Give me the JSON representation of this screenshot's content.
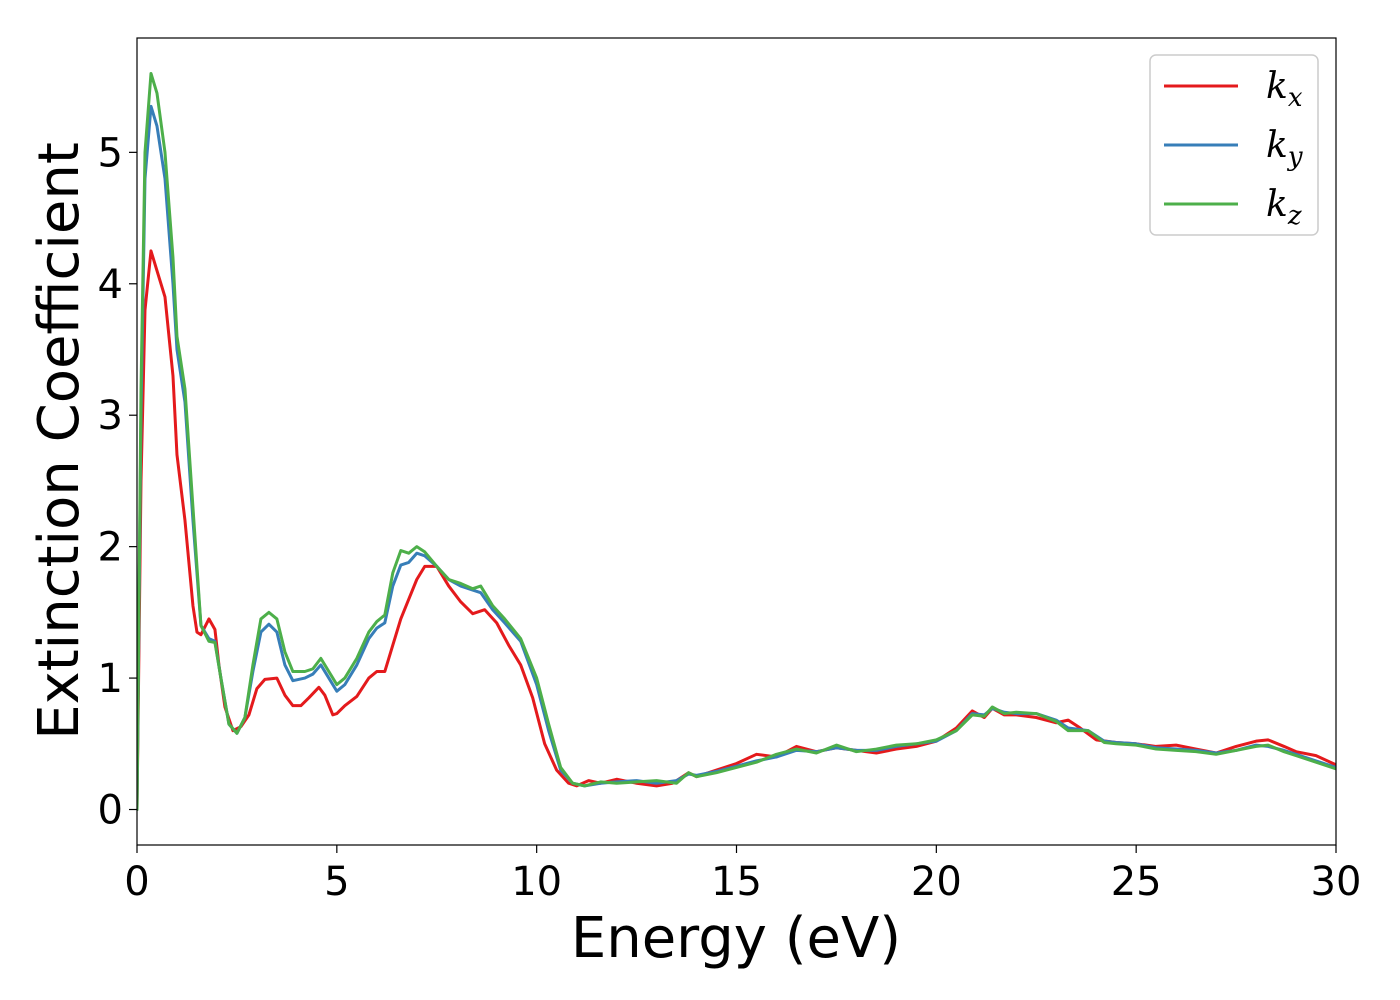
{
  "chart_data": {
    "type": "line",
    "title": "",
    "xlabel": "Energy (eV)",
    "ylabel": "Extinction Coefficient",
    "xlim": [
      0,
      30
    ],
    "ylim": [
      -0.27,
      5.87
    ],
    "xticks": [
      0,
      5,
      10,
      15,
      20,
      25,
      30
    ],
    "yticks": [
      0,
      1,
      2,
      3,
      4,
      5
    ],
    "grid": false,
    "legend_position": "top-right",
    "series": [
      {
        "name": "k_x",
        "legend_main": "k",
        "legend_sub": "x",
        "color": "#e41a1c",
        "points": [
          [
            0,
            0
          ],
          [
            0.1,
            2.5
          ],
          [
            0.2,
            3.8
          ],
          [
            0.35,
            4.25
          ],
          [
            0.5,
            4.1
          ],
          [
            0.7,
            3.9
          ],
          [
            0.9,
            3.3
          ],
          [
            1.0,
            2.7
          ],
          [
            1.2,
            2.2
          ],
          [
            1.4,
            1.55
          ],
          [
            1.5,
            1.35
          ],
          [
            1.6,
            1.33
          ],
          [
            1.8,
            1.45
          ],
          [
            1.95,
            1.37
          ],
          [
            2.05,
            1.1
          ],
          [
            2.2,
            0.78
          ],
          [
            2.4,
            0.6
          ],
          [
            2.6,
            0.63
          ],
          [
            2.8,
            0.72
          ],
          [
            3.0,
            0.92
          ],
          [
            3.2,
            0.99
          ],
          [
            3.5,
            1.0
          ],
          [
            3.7,
            0.87
          ],
          [
            3.9,
            0.79
          ],
          [
            4.1,
            0.79
          ],
          [
            4.3,
            0.85
          ],
          [
            4.55,
            0.93
          ],
          [
            4.7,
            0.87
          ],
          [
            4.9,
            0.72
          ],
          [
            5.0,
            0.73
          ],
          [
            5.2,
            0.79
          ],
          [
            5.5,
            0.86
          ],
          [
            5.8,
            1.0
          ],
          [
            6.0,
            1.05
          ],
          [
            6.2,
            1.05
          ],
          [
            6.4,
            1.25
          ],
          [
            6.6,
            1.45
          ],
          [
            6.8,
            1.6
          ],
          [
            7.0,
            1.75
          ],
          [
            7.2,
            1.85
          ],
          [
            7.5,
            1.85
          ],
          [
            7.8,
            1.7
          ],
          [
            8.1,
            1.58
          ],
          [
            8.4,
            1.49
          ],
          [
            8.7,
            1.52
          ],
          [
            9.0,
            1.42
          ],
          [
            9.3,
            1.25
          ],
          [
            9.6,
            1.1
          ],
          [
            9.9,
            0.85
          ],
          [
            10.2,
            0.5
          ],
          [
            10.5,
            0.3
          ],
          [
            10.8,
            0.2
          ],
          [
            11.0,
            0.18
          ],
          [
            11.3,
            0.22
          ],
          [
            11.6,
            0.2
          ],
          [
            12.0,
            0.23
          ],
          [
            12.5,
            0.2
          ],
          [
            13.0,
            0.18
          ],
          [
            13.4,
            0.2
          ],
          [
            13.8,
            0.28
          ],
          [
            14.0,
            0.25
          ],
          [
            14.5,
            0.3
          ],
          [
            15.0,
            0.35
          ],
          [
            15.5,
            0.42
          ],
          [
            16.0,
            0.4
          ],
          [
            16.5,
            0.48
          ],
          [
            17.0,
            0.44
          ],
          [
            17.5,
            0.47
          ],
          [
            18.0,
            0.45
          ],
          [
            18.5,
            0.43
          ],
          [
            19.0,
            0.46
          ],
          [
            19.5,
            0.48
          ],
          [
            20.0,
            0.52
          ],
          [
            20.5,
            0.62
          ],
          [
            20.9,
            0.75
          ],
          [
            21.2,
            0.7
          ],
          [
            21.4,
            0.77
          ],
          [
            21.7,
            0.72
          ],
          [
            22.0,
            0.72
          ],
          [
            22.5,
            0.7
          ],
          [
            23.0,
            0.66
          ],
          [
            23.3,
            0.68
          ],
          [
            23.6,
            0.62
          ],
          [
            24.0,
            0.53
          ],
          [
            24.5,
            0.51
          ],
          [
            25.0,
            0.5
          ],
          [
            25.5,
            0.48
          ],
          [
            26.0,
            0.49
          ],
          [
            26.5,
            0.46
          ],
          [
            27.0,
            0.43
          ],
          [
            27.5,
            0.48
          ],
          [
            28.0,
            0.52
          ],
          [
            28.3,
            0.53
          ],
          [
            28.7,
            0.48
          ],
          [
            29.0,
            0.44
          ],
          [
            29.5,
            0.41
          ],
          [
            30.0,
            0.34
          ]
        ]
      },
      {
        "name": "k_y",
        "legend_main": "k",
        "legend_sub": "y",
        "color": "#377eb8",
        "points": [
          [
            0,
            0
          ],
          [
            0.1,
            3.0
          ],
          [
            0.2,
            4.8
          ],
          [
            0.35,
            5.35
          ],
          [
            0.5,
            5.2
          ],
          [
            0.7,
            4.8
          ],
          [
            0.9,
            4.0
          ],
          [
            1.0,
            3.5
          ],
          [
            1.2,
            3.1
          ],
          [
            1.4,
            2.2
          ],
          [
            1.6,
            1.4
          ],
          [
            1.8,
            1.3
          ],
          [
            1.95,
            1.28
          ],
          [
            2.1,
            1.0
          ],
          [
            2.3,
            0.65
          ],
          [
            2.5,
            0.58
          ],
          [
            2.7,
            0.7
          ],
          [
            2.9,
            1.05
          ],
          [
            3.1,
            1.35
          ],
          [
            3.3,
            1.41
          ],
          [
            3.5,
            1.35
          ],
          [
            3.7,
            1.1
          ],
          [
            3.9,
            0.98
          ],
          [
            4.2,
            1.0
          ],
          [
            4.4,
            1.03
          ],
          [
            4.6,
            1.1
          ],
          [
            4.8,
            1.0
          ],
          [
            5.0,
            0.9
          ],
          [
            5.2,
            0.95
          ],
          [
            5.5,
            1.1
          ],
          [
            5.8,
            1.3
          ],
          [
            6.0,
            1.38
          ],
          [
            6.2,
            1.42
          ],
          [
            6.4,
            1.7
          ],
          [
            6.6,
            1.86
          ],
          [
            6.8,
            1.88
          ],
          [
            7.0,
            1.95
          ],
          [
            7.2,
            1.93
          ],
          [
            7.5,
            1.85
          ],
          [
            7.8,
            1.75
          ],
          [
            8.1,
            1.7
          ],
          [
            8.4,
            1.67
          ],
          [
            8.6,
            1.65
          ],
          [
            8.9,
            1.52
          ],
          [
            9.2,
            1.42
          ],
          [
            9.6,
            1.28
          ],
          [
            10.0,
            0.95
          ],
          [
            10.3,
            0.6
          ],
          [
            10.6,
            0.3
          ],
          [
            10.9,
            0.2
          ],
          [
            11.2,
            0.18
          ],
          [
            11.6,
            0.2
          ],
          [
            12.0,
            0.21
          ],
          [
            12.5,
            0.22
          ],
          [
            13.0,
            0.2
          ],
          [
            13.5,
            0.22
          ],
          [
            13.8,
            0.27
          ],
          [
            14.0,
            0.26
          ],
          [
            14.5,
            0.29
          ],
          [
            15.0,
            0.33
          ],
          [
            15.5,
            0.37
          ],
          [
            16.0,
            0.4
          ],
          [
            16.5,
            0.45
          ],
          [
            17.0,
            0.44
          ],
          [
            17.5,
            0.47
          ],
          [
            18.0,
            0.45
          ],
          [
            18.5,
            0.45
          ],
          [
            19.0,
            0.48
          ],
          [
            19.5,
            0.5
          ],
          [
            20.0,
            0.52
          ],
          [
            20.5,
            0.6
          ],
          [
            20.9,
            0.73
          ],
          [
            21.2,
            0.72
          ],
          [
            21.4,
            0.77
          ],
          [
            21.7,
            0.74
          ],
          [
            22.0,
            0.73
          ],
          [
            22.5,
            0.73
          ],
          [
            23.0,
            0.68
          ],
          [
            23.3,
            0.62
          ],
          [
            23.8,
            0.6
          ],
          [
            24.2,
            0.52
          ],
          [
            24.5,
            0.51
          ],
          [
            25.0,
            0.5
          ],
          [
            25.5,
            0.47
          ],
          [
            26.0,
            0.46
          ],
          [
            26.5,
            0.45
          ],
          [
            27.0,
            0.43
          ],
          [
            27.5,
            0.45
          ],
          [
            28.0,
            0.49
          ],
          [
            28.3,
            0.48
          ],
          [
            28.7,
            0.45
          ],
          [
            29.0,
            0.42
          ],
          [
            29.5,
            0.37
          ],
          [
            30.0,
            0.32
          ]
        ]
      },
      {
        "name": "k_z",
        "legend_main": "k",
        "legend_sub": "z",
        "color": "#4daf4a",
        "points": [
          [
            0,
            0
          ],
          [
            0.1,
            3.2
          ],
          [
            0.2,
            5.0
          ],
          [
            0.35,
            5.6
          ],
          [
            0.5,
            5.45
          ],
          [
            0.7,
            5.0
          ],
          [
            0.9,
            4.2
          ],
          [
            1.0,
            3.6
          ],
          [
            1.2,
            3.2
          ],
          [
            1.4,
            2.3
          ],
          [
            1.6,
            1.4
          ],
          [
            1.8,
            1.28
          ],
          [
            1.95,
            1.27
          ],
          [
            2.1,
            1.0
          ],
          [
            2.3,
            0.65
          ],
          [
            2.5,
            0.58
          ],
          [
            2.7,
            0.7
          ],
          [
            2.9,
            1.1
          ],
          [
            3.1,
            1.45
          ],
          [
            3.3,
            1.5
          ],
          [
            3.5,
            1.45
          ],
          [
            3.7,
            1.2
          ],
          [
            3.9,
            1.05
          ],
          [
            4.2,
            1.05
          ],
          [
            4.4,
            1.07
          ],
          [
            4.6,
            1.15
          ],
          [
            4.8,
            1.05
          ],
          [
            5.0,
            0.95
          ],
          [
            5.2,
            1.0
          ],
          [
            5.5,
            1.15
          ],
          [
            5.8,
            1.35
          ],
          [
            6.0,
            1.43
          ],
          [
            6.2,
            1.48
          ],
          [
            6.4,
            1.8
          ],
          [
            6.6,
            1.97
          ],
          [
            6.8,
            1.95
          ],
          [
            7.0,
            2.0
          ],
          [
            7.2,
            1.96
          ],
          [
            7.5,
            1.85
          ],
          [
            7.8,
            1.75
          ],
          [
            8.1,
            1.72
          ],
          [
            8.4,
            1.68
          ],
          [
            8.6,
            1.7
          ],
          [
            8.9,
            1.55
          ],
          [
            9.2,
            1.45
          ],
          [
            9.6,
            1.3
          ],
          [
            10.0,
            1.0
          ],
          [
            10.3,
            0.65
          ],
          [
            10.6,
            0.32
          ],
          [
            10.9,
            0.2
          ],
          [
            11.2,
            0.18
          ],
          [
            11.6,
            0.21
          ],
          [
            12.0,
            0.2
          ],
          [
            12.5,
            0.21
          ],
          [
            13.0,
            0.22
          ],
          [
            13.5,
            0.2
          ],
          [
            13.8,
            0.28
          ],
          [
            14.0,
            0.25
          ],
          [
            14.5,
            0.28
          ],
          [
            15.0,
            0.32
          ],
          [
            15.5,
            0.36
          ],
          [
            16.0,
            0.42
          ],
          [
            16.5,
            0.46
          ],
          [
            17.0,
            0.43
          ],
          [
            17.5,
            0.49
          ],
          [
            18.0,
            0.44
          ],
          [
            18.5,
            0.46
          ],
          [
            19.0,
            0.49
          ],
          [
            19.5,
            0.5
          ],
          [
            20.0,
            0.53
          ],
          [
            20.5,
            0.6
          ],
          [
            20.9,
            0.72
          ],
          [
            21.2,
            0.71
          ],
          [
            21.4,
            0.78
          ],
          [
            21.7,
            0.73
          ],
          [
            22.0,
            0.74
          ],
          [
            22.5,
            0.73
          ],
          [
            23.0,
            0.67
          ],
          [
            23.3,
            0.6
          ],
          [
            23.8,
            0.6
          ],
          [
            24.2,
            0.51
          ],
          [
            24.5,
            0.5
          ],
          [
            25.0,
            0.49
          ],
          [
            25.5,
            0.46
          ],
          [
            26.0,
            0.45
          ],
          [
            26.5,
            0.44
          ],
          [
            27.0,
            0.42
          ],
          [
            27.5,
            0.45
          ],
          [
            28.0,
            0.48
          ],
          [
            28.3,
            0.49
          ],
          [
            28.7,
            0.44
          ],
          [
            29.0,
            0.41
          ],
          [
            29.5,
            0.36
          ],
          [
            30.0,
            0.31
          ]
        ]
      }
    ]
  }
}
